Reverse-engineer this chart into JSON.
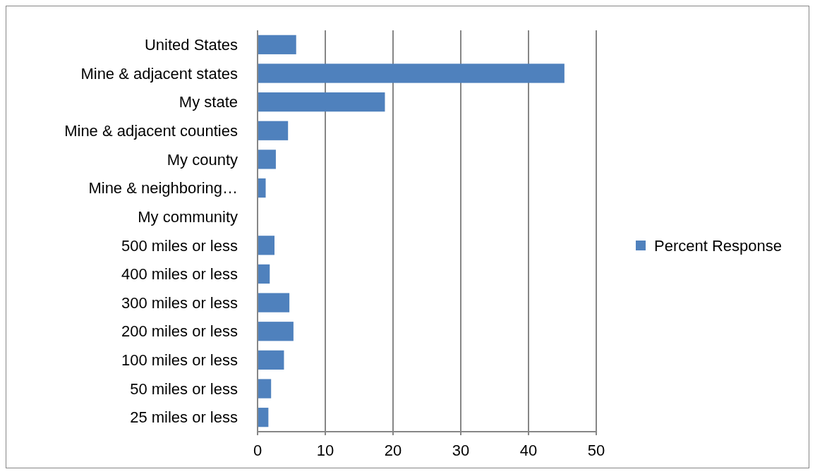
{
  "chart_data": {
    "type": "bar",
    "orientation": "horizontal",
    "categories": [
      "United States",
      "Mine & adjacent states",
      "My state",
      "Mine & adjacent counties",
      "My county",
      "Mine & neighboring…",
      "My community",
      "500 miles or less",
      "400 miles or less",
      "300 miles or less",
      "200 miles or less",
      "100 miles or less",
      "50 miles or less",
      "25 miles or less"
    ],
    "series": [
      {
        "name": "Percent Response",
        "color": "#4f81bd",
        "values": [
          5.7,
          45.3,
          18.8,
          4.5,
          2.7,
          1.2,
          0,
          2.5,
          1.8,
          4.7,
          5.3,
          3.9,
          2.0,
          1.6
        ]
      }
    ],
    "xlim": [
      0,
      50
    ],
    "xticks": [
      0,
      10,
      20,
      30,
      40,
      50
    ],
    "grid": "x",
    "legend": "right"
  }
}
